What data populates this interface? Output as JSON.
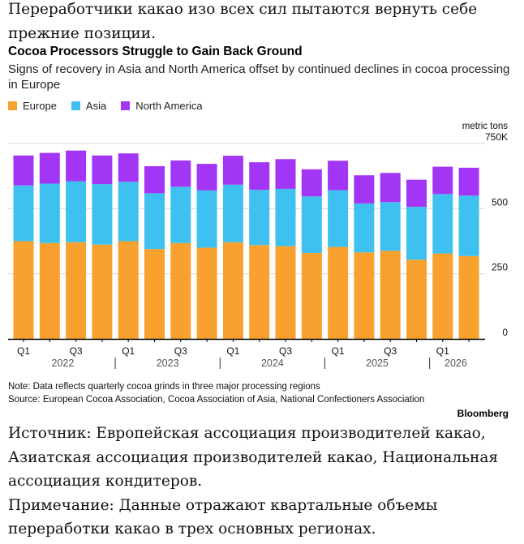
{
  "intro_text": "Переработчики какао изо всех сил пытаются вернуть себе прежние позиции.",
  "outro": {
    "source_text": "Источник: Европейская ассоциация производителей какао, Азиатская ассоциация производителей какао, Национальная ассоциация кондитеров.",
    "note_text": "Примечание: Данные отражают квартальные объемы переработки какао в трех основных регионах."
  },
  "footer": {
    "note": "Note: Data reflects quarterly cocoa grinds in three major processing regions",
    "source": "Source: European Cocoa Association, Cocoa Association of Asia, National Confectioners Association",
    "brand": "Bloomberg"
  },
  "colors": {
    "europe": "#f9a12e",
    "asia": "#3ec1f0",
    "north_america": "#a335f5",
    "grid": "#d9d9d9",
    "axis": "#000000"
  },
  "chart_data": {
    "type": "bar",
    "stacked": true,
    "title": "Cocoa Processors Struggle to Gain Back Ground",
    "subtitle": "Signs of recovery in Asia and North America offset by continued declines in cocoa processing in Europe",
    "unit_label": "metric tons",
    "y_ticks": [
      {
        "value": 0,
        "label": "0"
      },
      {
        "value": 250,
        "label": "250"
      },
      {
        "value": 500,
        "label": "500"
      },
      {
        "value": 750,
        "label": "750K"
      }
    ],
    "ylim": [
      0,
      750
    ],
    "grid": true,
    "legend_position": "top-left",
    "x_tick_labels": [
      {
        "index": 0,
        "label": "Q1"
      },
      {
        "index": 2,
        "label": "Q3"
      },
      {
        "index": 4,
        "label": "Q1"
      },
      {
        "index": 6,
        "label": "Q3"
      },
      {
        "index": 8,
        "label": "Q1"
      },
      {
        "index": 10,
        "label": "Q3"
      },
      {
        "index": 12,
        "label": "Q1"
      },
      {
        "index": 14,
        "label": "Q3"
      },
      {
        "index": 16,
        "label": "Q1"
      }
    ],
    "year_labels": [
      {
        "label": "2022",
        "start": 0,
        "end": 3
      },
      {
        "label": "2023",
        "start": 4,
        "end": 7
      },
      {
        "label": "2024",
        "start": 8,
        "end": 11
      },
      {
        "label": "2025",
        "start": 12,
        "end": 15
      },
      {
        "label": "2026",
        "start": 16,
        "end": 17
      }
    ],
    "series": [
      {
        "name": "Europe",
        "color_key": "europe",
        "values": [
          375,
          368,
          371,
          362,
          375,
          345,
          368,
          350,
          371,
          360,
          356,
          330,
          353,
          332,
          338,
          304,
          328,
          318
        ]
      },
      {
        "name": "Asia",
        "color_key": "asia",
        "values": [
          214,
          228,
          234,
          232,
          228,
          214,
          216,
          220,
          221,
          212,
          220,
          217,
          218,
          188,
          187,
          203,
          228,
          232
        ]
      },
      {
        "name": "North America",
        "color_key": "north_america",
        "values": [
          115,
          118,
          118,
          110,
          109,
          104,
          101,
          102,
          111,
          106,
          114,
          104,
          113,
          108,
          112,
          104,
          105,
          107
        ]
      }
    ]
  }
}
